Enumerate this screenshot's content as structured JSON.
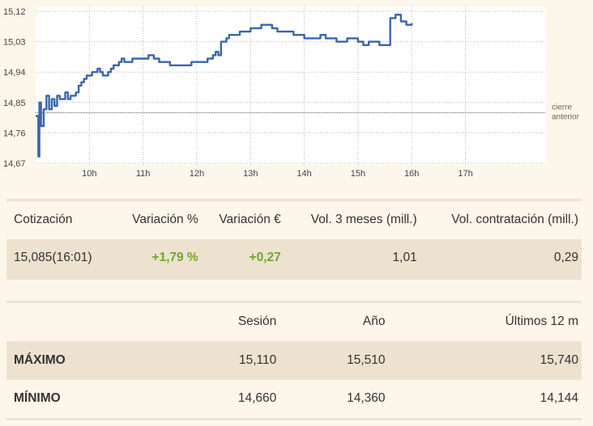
{
  "chart_data": {
    "type": "line",
    "y_ticks": [
      "15,12",
      "15,03",
      "14,94",
      "14,85",
      "14,76",
      "14,67"
    ],
    "x_ticks": [
      "10h",
      "11h",
      "12h",
      "13h",
      "14h",
      "15h",
      "16h",
      "17h"
    ],
    "ylim": [
      14.67,
      15.12
    ],
    "xlim": [
      9.0,
      18.5
    ],
    "reference": {
      "label": [
        "cierre",
        "anterior"
      ],
      "value": 14.82
    },
    "grid": true,
    "color": "#3a65ad",
    "series": [
      {
        "x": [
          9.0,
          9.02,
          9.05,
          9.07,
          9.1,
          9.15,
          9.2,
          9.25,
          9.3,
          9.35,
          9.4,
          9.45,
          9.5,
          9.55,
          9.6,
          9.65,
          9.7,
          9.75,
          9.8,
          9.85,
          9.9,
          9.95,
          10.0,
          10.05,
          10.1,
          10.15,
          10.2,
          10.25,
          10.3,
          10.35,
          10.4,
          10.45,
          10.5,
          10.55,
          10.6,
          10.65,
          10.7,
          10.8,
          10.9,
          11.0,
          11.1,
          11.2,
          11.3,
          11.4,
          11.5,
          11.6,
          11.7,
          11.8,
          11.9,
          12.0,
          12.1,
          12.2,
          12.3,
          12.35,
          12.4,
          12.45,
          12.5,
          12.55,
          12.6,
          12.7,
          12.8,
          12.9,
          13.0,
          13.1,
          13.2,
          13.3,
          13.4,
          13.5,
          13.6,
          13.7,
          13.8,
          13.9,
          14.0,
          14.1,
          14.2,
          14.3,
          14.4,
          14.5,
          14.6,
          14.7,
          14.8,
          14.9,
          15.0,
          15.1,
          15.2,
          15.3,
          15.4,
          15.5,
          15.6,
          15.7,
          15.8,
          15.9,
          16.0
        ],
        "y": [
          14.81,
          14.81,
          14.69,
          14.85,
          14.78,
          14.83,
          14.87,
          14.83,
          14.86,
          14.84,
          14.87,
          14.86,
          14.86,
          14.88,
          14.86,
          14.87,
          14.87,
          14.88,
          14.9,
          14.91,
          14.92,
          14.93,
          14.93,
          14.94,
          14.94,
          14.95,
          14.94,
          14.93,
          14.93,
          14.94,
          14.95,
          14.96,
          14.96,
          14.97,
          14.98,
          14.97,
          14.97,
          14.98,
          14.98,
          14.98,
          14.99,
          14.98,
          14.97,
          14.97,
          14.96,
          14.96,
          14.96,
          14.96,
          14.97,
          14.97,
          14.97,
          14.98,
          14.99,
          15.0,
          14.99,
          15.03,
          15.03,
          15.04,
          15.05,
          15.05,
          15.06,
          15.06,
          15.07,
          15.07,
          15.08,
          15.08,
          15.07,
          15.06,
          15.06,
          15.06,
          15.05,
          15.05,
          15.04,
          15.04,
          15.04,
          15.05,
          15.04,
          15.04,
          15.03,
          15.03,
          15.04,
          15.04,
          15.03,
          15.02,
          15.03,
          15.03,
          15.02,
          15.02,
          15.1,
          15.11,
          15.09,
          15.08,
          15.085
        ]
      }
    ]
  },
  "quote": {
    "headers": [
      "Cotización",
      "Variación %",
      "Variación €",
      "Vol. 3 meses (mill.)",
      "Vol. contratación (mill.)"
    ],
    "price": "15,085(16:01)",
    "var_pct": "+1,79 %",
    "var_eur": "+0,27",
    "vol_3m": "1,01",
    "vol_contr": "0,29"
  },
  "range": {
    "headers": [
      "",
      "Sesión",
      "Año",
      "Últimos 12 m"
    ],
    "max_label": "MÁXIMO",
    "max": [
      "15,110",
      "15,510",
      "15,740"
    ],
    "min_label": "MÍNIMO",
    "min": [
      "14,660",
      "14,360",
      "14,144"
    ]
  },
  "colors": {
    "positive": "#74a52c",
    "line": "#3a65ad",
    "row_band": "#ece2cf"
  }
}
